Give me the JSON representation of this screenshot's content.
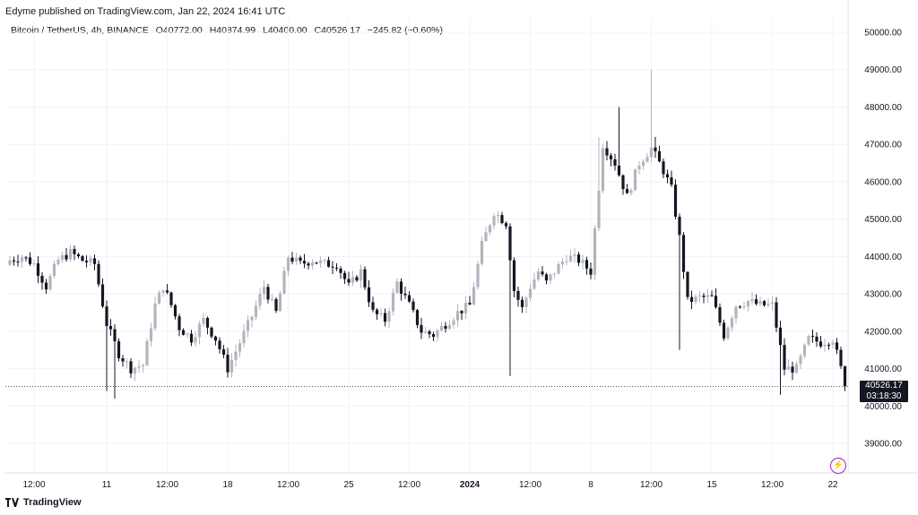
{
  "header": {
    "published": "Edyme published on TradingView.com, Jan 22, 2024 16:41 UTC"
  },
  "symbol_bar": {
    "name": "Bitcoin / TetherUS, 4h, BINANCE",
    "open": "O40772.00",
    "high": "H40874.99",
    "low": "L40400.00",
    "close": "C40526.17",
    "change": "−245.82 (−0.60%)"
  },
  "last_price": {
    "price": "40526.17",
    "countdown": "03:18:30"
  },
  "footer": {
    "brand": "TradingView"
  },
  "colors": {
    "up": "#b2b5be",
    "down": "#131722",
    "grid": "#f0f3fa",
    "accent": "#9c27b0"
  },
  "icons": [
    "tradingview-logo-icon",
    "lightning-icon"
  ],
  "chart_data": {
    "type": "candlestick",
    "interval": "4h",
    "ylim": [
      38500,
      50500
    ],
    "yticks": [
      "39000.00",
      "40000.00",
      "41000.00",
      "42000.00",
      "43000.00",
      "44000.00",
      "45000.00",
      "46000.00",
      "47000.00",
      "48000.00",
      "49000.00",
      "50000.00"
    ],
    "xticks": [
      {
        "label": "12:00",
        "i": 6,
        "bold": false
      },
      {
        "label": "11",
        "i": 24,
        "bold": false
      },
      {
        "label": "12:00",
        "i": 39,
        "bold": false
      },
      {
        "label": "18",
        "i": 54,
        "bold": false
      },
      {
        "label": "12:00",
        "i": 69,
        "bold": false
      },
      {
        "label": "25",
        "i": 84,
        "bold": false
      },
      {
        "label": "12:00",
        "i": 99,
        "bold": false
      },
      {
        "label": "2024",
        "i": 114,
        "bold": true
      },
      {
        "label": "12:00",
        "i": 129,
        "bold": false
      },
      {
        "label": "8",
        "i": 144,
        "bold": false
      },
      {
        "label": "12:00",
        "i": 159,
        "bold": false
      },
      {
        "label": "15",
        "i": 174,
        "bold": false
      },
      {
        "label": "12:00",
        "i": 189,
        "bold": false
      },
      {
        "label": "22",
        "i": 204,
        "bold": false
      }
    ],
    "last_close": 40526.17
  }
}
